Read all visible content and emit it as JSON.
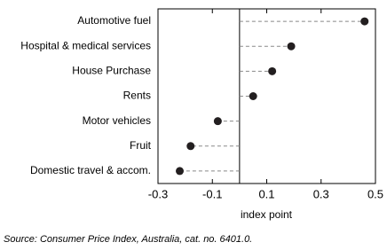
{
  "chart_data": {
    "type": "dot",
    "categories": [
      "Automotive fuel",
      "Hospital & medical services",
      "House Purchase",
      "Rents",
      "Motor vehicles",
      "Fruit",
      "Domestic travel & accom."
    ],
    "values": [
      0.46,
      0.19,
      0.12,
      0.05,
      -0.08,
      -0.18,
      -0.22
    ],
    "color": "#231f20",
    "xlim": [
      -0.3,
      0.5
    ],
    "xticks": [
      -0.3,
      -0.1,
      0.1,
      0.3,
      0.5
    ],
    "x_label": "index point",
    "source": "Source: Consumer Price Index, Australia, cat. no. 6401.0."
  }
}
